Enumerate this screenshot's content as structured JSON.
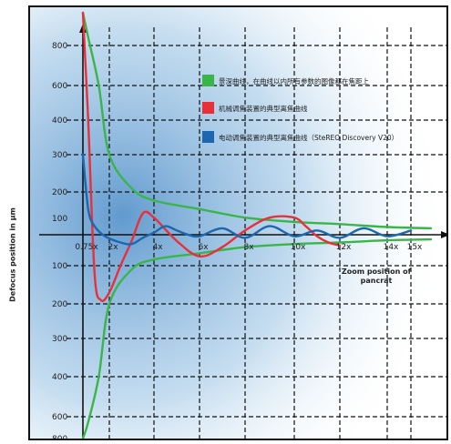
{
  "chart_data": {
    "type": "line",
    "ylabel": "Defocus position in µm",
    "xlabel": "Zoom position of pancrat",
    "x_ticks": [
      {
        "label": "0.75x",
        "x": 0.75
      },
      {
        "label": "2x",
        "x": 2
      },
      {
        "label": "4x",
        "x": 4
      },
      {
        "label": "6x",
        "x": 6
      },
      {
        "label": "8x",
        "x": 8
      },
      {
        "label": "10x",
        "x": 10
      },
      {
        "label": "12x",
        "x": 12
      },
      {
        "label": "14x",
        "x": 14
      },
      {
        "label": "15x",
        "x": 15
      }
    ],
    "y_ticks_upper": [
      "800",
      "600",
      "400",
      "300",
      "200",
      "100"
    ],
    "y_ticks_lower": [
      "100",
      "200",
      "300",
      "400",
      "600",
      "800"
    ],
    "legend": [
      {
        "label": "景深曲线，在曲线以内所有参数的图像都在焦距上",
        "color": "#3ab54a"
      },
      {
        "label": "机械调焦装置的典型离焦曲线",
        "color": "#e8303a"
      },
      {
        "label": "电动调焦装置的典型离焦曲线（SteREO Discovery V20）",
        "color": "#1c67ae"
      }
    ],
    "series": [
      {
        "name": "景深曲线，在曲线以内所有参数的图像都在焦距上",
        "color": "#3ab54a",
        "x": [
          0.75,
          1.0,
          1.5,
          2.0,
          3.0,
          4.0,
          6.0,
          8.0,
          10.0,
          12.0,
          14.0,
          15.5
        ],
        "y": [
          800,
          650,
          400,
          200,
          110,
          80,
          60,
          40,
          30,
          25,
          18,
          15
        ]
      },
      {
        "name": "景深曲线，在曲线以内所有参数的图像都在焦距上",
        "color": "#3ab54a",
        "x": [
          0.75,
          1.0,
          1.5,
          2.0,
          3.0,
          4.0,
          6.0,
          8.0,
          10.0,
          12.0,
          14.0,
          15.5
        ],
        "y": [
          -800,
          -650,
          -400,
          -200,
          -110,
          -80,
          -60,
          -40,
          -30,
          -25,
          -18,
          -15
        ]
      },
      {
        "name": "机械调焦装置的典型离焦曲线",
        "color": "#e8303a",
        "x": [
          0.75,
          1.0,
          1.3,
          1.6,
          2.0,
          2.5,
          3.0,
          3.5,
          4.0,
          5.0,
          6.0,
          7.0,
          8.0,
          9.0,
          10.0,
          10.5,
          11.0,
          11.5,
          12.0
        ],
        "y": [
          800,
          300,
          -120,
          -190,
          -170,
          -100,
          -20,
          50,
          40,
          -20,
          -70,
          -40,
          10,
          40,
          40,
          20,
          -5,
          -25,
          -35
        ]
      },
      {
        "name": "电动调焦装置的典型离焦曲线（SteREO Discovery V20）",
        "color": "#1c67ae",
        "x": [
          0.75,
          1.0,
          1.3,
          1.8,
          2.5,
          3.0,
          3.5,
          4.0,
          4.5,
          5.0,
          5.5,
          6.0,
          7.0,
          8.0,
          9.0,
          10.0,
          11.0,
          12.0,
          13.0,
          14.0,
          15.0
        ],
        "y": [
          200,
          60,
          20,
          -5,
          -25,
          -30,
          -10,
          5,
          20,
          10,
          0,
          -5,
          15,
          -10,
          20,
          -5,
          10,
          -10,
          15,
          -5,
          10
        ]
      }
    ]
  }
}
